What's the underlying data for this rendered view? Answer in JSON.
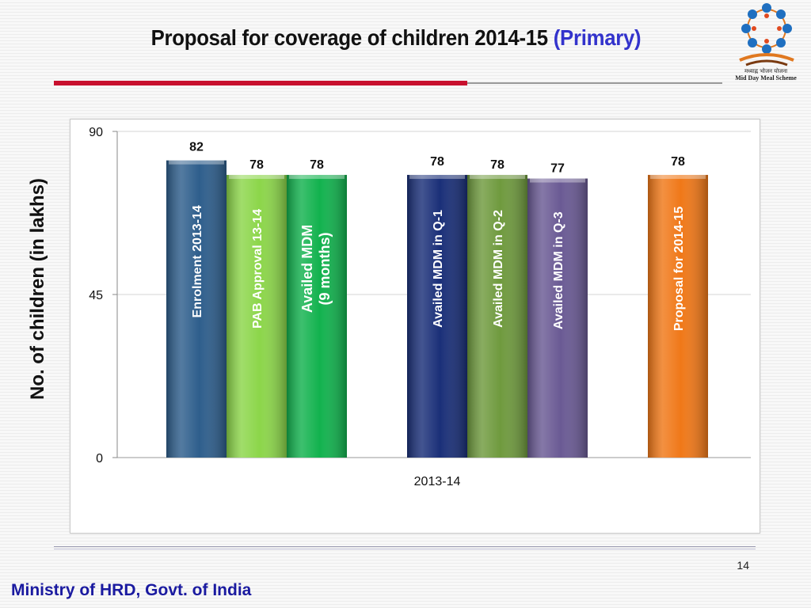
{
  "header": {
    "title_main": "Proposal for coverage of children 2014-15",
    "title_accent": "(Primary)",
    "logo_line1": "मध्याह्न भोजन योजना",
    "logo_line2": "Mid Day Meal Scheme"
  },
  "colors": {
    "title_accent": "#3333cc",
    "rule_red": "#c8102e",
    "footer_text": "#1a1aa0"
  },
  "chart_data": {
    "type": "bar",
    "xlabel": "2013-14",
    "ylabel": "No. of children (in lakhs)",
    "ylim": [
      0,
      90
    ],
    "yticks": [
      0,
      45,
      90
    ],
    "grid": true,
    "categories": [
      "Enrolment 2013-14",
      "PAB Approval 13-14",
      "Availed MDM (9 months)",
      "Availed MDM in Q-1",
      "Availed MDM in Q-2",
      "Availed MDM in Q-3",
      "Proposal for 2014-15"
    ],
    "values": [
      82,
      78,
      78,
      78,
      78,
      77,
      78
    ],
    "bar_colors": [
      "#2e5e8c",
      "#8cd64a",
      "#12b24e",
      "#1a2f78",
      "#6f9a3e",
      "#6a5a94",
      "#f07818"
    ],
    "label_colors": [
      "#ffffff",
      "#ff3b3b",
      "#ffffff",
      "#ffffff",
      "#ffffff",
      "#ffffff",
      "#ffffff"
    ]
  },
  "footer": {
    "page_number": "14",
    "org": "Ministry of HRD, Govt. of India"
  }
}
